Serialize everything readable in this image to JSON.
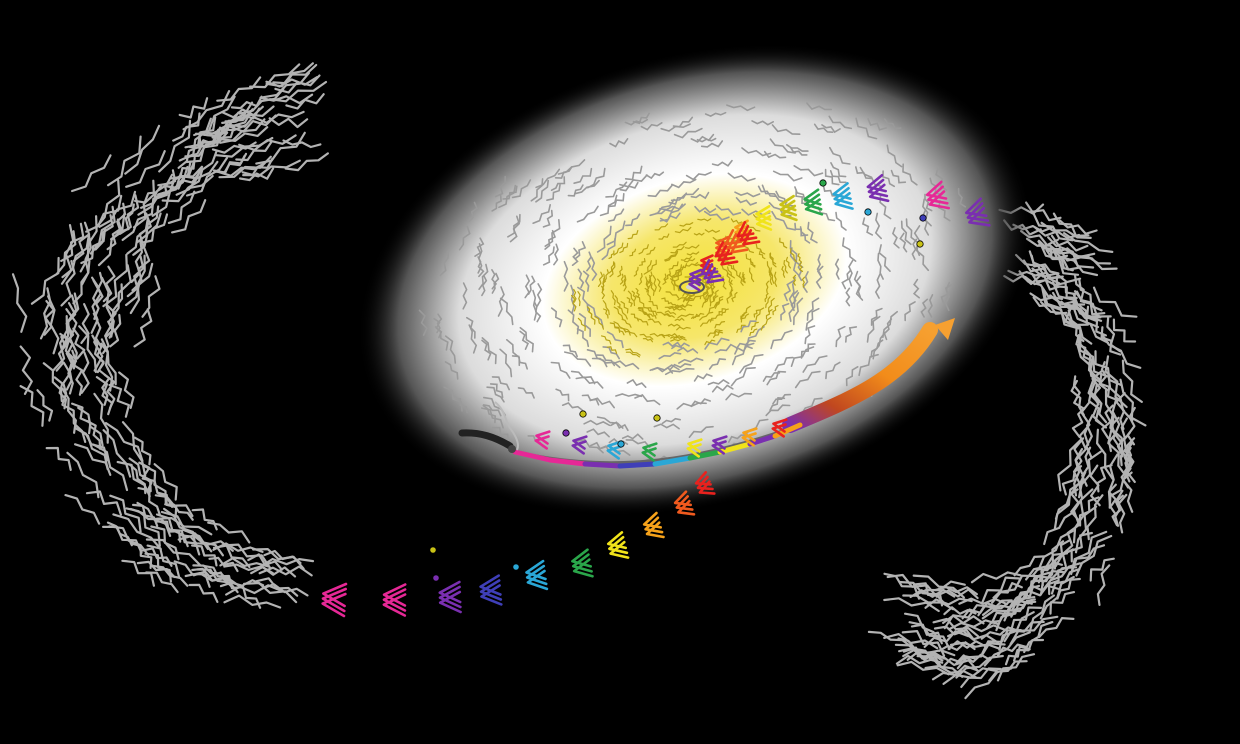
{
  "scene": {
    "background_color": "#000000",
    "galaxy_glow_inner": "#f4e23a",
    "galaxy_glow_mid": "#ffffff",
    "stream_strand_color": "#b3b3b3",
    "disk_strand_color": "#9a9a9a",
    "core_strand_color": "#b8a316",
    "center_marker_color": "#d2d2d2",
    "tidal_plume_color": "#f28c1a",
    "rainbow_sequence": [
      "#e62896",
      "#7a2fb0",
      "#3f3fb8",
      "#2aa7d6",
      "#2aa64a",
      "#c9c216",
      "#f0e31a",
      "#f6a21a",
      "#f05a1e",
      "#e8221e"
    ]
  }
}
